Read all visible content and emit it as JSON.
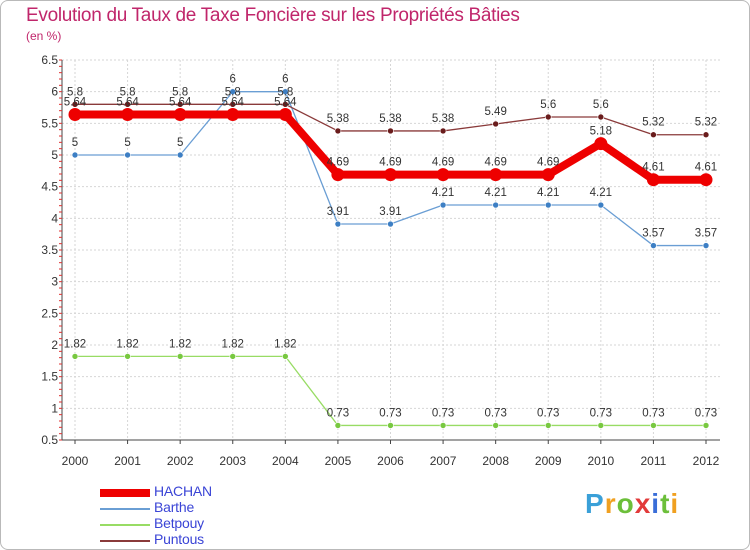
{
  "header": {
    "title": "Evolution du Taux de Taxe Foncière sur les Propriétés Bâties",
    "subtitle": "(en %)"
  },
  "logo": {
    "text": "Proxiti"
  },
  "chart_data": {
    "type": "line",
    "title": "Evolution du Taux de Taxe Foncière sur les Propriétés Bâties",
    "ylabel": "(en %)",
    "xlabel": "",
    "x": [
      "2000",
      "2001",
      "2002",
      "2003",
      "2004",
      "2005",
      "2006",
      "2007",
      "2008",
      "2009",
      "2010",
      "2011",
      "2012"
    ],
    "ylim": [
      0.5,
      6.5
    ],
    "yticks": [
      {
        "value": 0.5,
        "label": "0.5"
      },
      {
        "value": 1,
        "label": "1"
      },
      {
        "value": 1.5,
        "label": "1.5"
      },
      {
        "value": 2,
        "label": "2"
      },
      {
        "value": 2.5,
        "label": "2.5"
      },
      {
        "value": 3,
        "label": "3"
      },
      {
        "value": 3.5,
        "label": "3.5"
      },
      {
        "value": 4,
        "label": "4"
      },
      {
        "value": 4.5,
        "label": "4.5"
      },
      {
        "value": 5,
        "label": "5"
      },
      {
        "value": 5.5,
        "label": "5.5"
      },
      {
        "value": 6,
        "label": "6"
      },
      {
        "value": 6.5,
        "label": "6.5"
      }
    ],
    "grid": true,
    "legend_position": "bottom-left",
    "series": [
      {
        "name": "HACHAN",
        "color": "#ee0000",
        "marker_color": "#ee0000",
        "values": [
          5.64,
          5.64,
          5.64,
          5.64,
          5.64,
          4.69,
          4.69,
          4.69,
          4.69,
          4.69,
          5.18,
          4.61,
          4.61
        ],
        "labels": [
          "5.64",
          "5.64",
          "5.64",
          "5.64",
          "5.64",
          "4.69",
          "4.69",
          "4.69",
          "4.69",
          "4.69",
          "5.18",
          "4.61",
          "4.61"
        ]
      },
      {
        "name": "Barthe",
        "color": "#6a9ed4",
        "marker_color": "#3d7fc4",
        "values": [
          5,
          5,
          5,
          6,
          6,
          3.91,
          3.91,
          4.21,
          4.21,
          4.21,
          4.21,
          3.57,
          3.57
        ],
        "labels": [
          "5",
          "5",
          "5",
          "6",
          "6",
          "3.91",
          "3.91",
          "4.21",
          "4.21",
          "4.21",
          "4.21",
          "3.57",
          "3.57"
        ]
      },
      {
        "name": "Betpouy",
        "color": "#98dc64",
        "marker_color": "#78c840",
        "values": [
          1.82,
          1.82,
          1.82,
          1.82,
          1.82,
          0.73,
          0.73,
          0.73,
          0.73,
          0.73,
          0.73,
          0.73,
          0.73
        ],
        "labels": [
          "1.82",
          "1.82",
          "1.82",
          "1.82",
          "1.82",
          "0.73",
          "0.73",
          "0.73",
          "0.73",
          "0.73",
          "0.73",
          "0.73",
          "0.73"
        ]
      },
      {
        "name": "Puntous",
        "color": "#8a3a3a",
        "marker_color": "#6a1c1c",
        "values": [
          5.8,
          5.8,
          5.8,
          5.8,
          5.8,
          5.38,
          5.38,
          5.38,
          5.49,
          5.6,
          5.6,
          5.32,
          5.32
        ],
        "labels": [
          "5.8",
          "5.8",
          "5.8",
          "5.8",
          "5.8",
          "5.38",
          "5.38",
          "5.38",
          "5.49",
          "5.6",
          "5.6",
          "5.32",
          "5.32"
        ]
      }
    ]
  }
}
